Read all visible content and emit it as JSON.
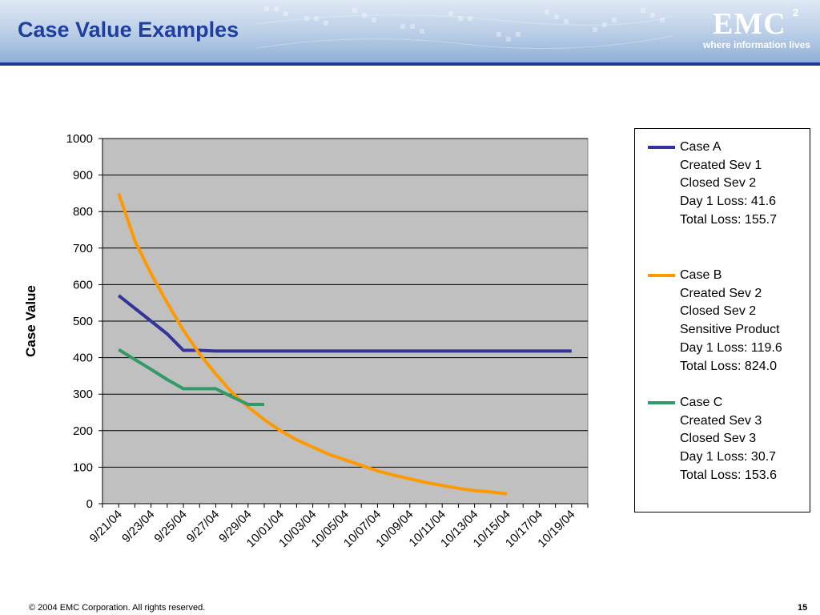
{
  "header": {
    "title": "Case Value Examples",
    "logo_text": "EMC",
    "logo_superscript": "2",
    "logo_tagline": "where information lives",
    "banner_color": "#9fbbdd",
    "title_color": "#1f3fa0"
  },
  "chart_data": {
    "type": "line",
    "title": "",
    "xlabel": "",
    "ylabel": "Case Value",
    "ylim": [
      0,
      1000
    ],
    "yticks": [
      0,
      100,
      200,
      300,
      400,
      500,
      600,
      700,
      800,
      900,
      1000
    ],
    "xtick_labels": [
      "9/21/04",
      "9/23/04",
      "9/25/04",
      "9/27/04",
      "9/29/04",
      "10/01/04",
      "10/03/04",
      "10/05/04",
      "10/07/04",
      "10/09/04",
      "10/11/04",
      "10/13/04",
      "10/15/04",
      "10/17/04",
      "10/19/04"
    ],
    "x_range": [
      "9/20/04",
      "10/20/04"
    ],
    "grid": "horizontal",
    "plot_background": "#c0c0c0",
    "legend_position": "right",
    "series": [
      {
        "name": "Case A",
        "color": "#333399",
        "legend_lines": [
          "Case A",
          "Created Sev 1",
          "Closed Sev 2",
          "Day 1 Loss: 41.6",
          "Total Loss: 155.7"
        ],
        "points": [
          [
            "9/21/04",
            570
          ],
          [
            "9/22/04",
            535
          ],
          [
            "9/23/04",
            500
          ],
          [
            "9/24/04",
            465
          ],
          [
            "9/25/04",
            420
          ],
          [
            "9/26/04",
            420
          ],
          [
            "9/27/04",
            418
          ],
          [
            "10/19/04",
            418
          ]
        ]
      },
      {
        "name": "Case B",
        "color": "#ff9900",
        "legend_lines": [
          "Case B",
          "Created Sev 2",
          "Closed Sev 2",
          "Sensitive Product",
          "Day 1 Loss: 119.6",
          "Total Loss: 824.0"
        ],
        "points": [
          [
            "9/21/04",
            850
          ],
          [
            "9/22/04",
            720
          ],
          [
            "9/23/04",
            630
          ],
          [
            "9/24/04",
            550
          ],
          [
            "9/25/04",
            475
          ],
          [
            "9/26/04",
            410
          ],
          [
            "9/27/04",
            355
          ],
          [
            "9/28/04",
            305
          ],
          [
            "9/29/04",
            265
          ],
          [
            "9/30/04",
            230
          ],
          [
            "10/01/04",
            200
          ],
          [
            "10/02/04",
            175
          ],
          [
            "10/03/04",
            155
          ],
          [
            "10/04/04",
            135
          ],
          [
            "10/05/04",
            120
          ],
          [
            "10/06/04",
            105
          ],
          [
            "10/07/04",
            90
          ],
          [
            "10/08/04",
            78
          ],
          [
            "10/09/04",
            68
          ],
          [
            "10/10/04",
            58
          ],
          [
            "10/11/04",
            50
          ],
          [
            "10/12/04",
            42
          ],
          [
            "10/13/04",
            36
          ],
          [
            "10/14/04",
            32
          ],
          [
            "10/15/04",
            27
          ]
        ]
      },
      {
        "name": "Case C",
        "color": "#339966",
        "legend_lines": [
          "Case C",
          "Created Sev 3",
          "Closed Sev 3",
          "Day 1 Loss: 30.7",
          "Total Loss: 153.6"
        ],
        "points": [
          [
            "9/21/04",
            422
          ],
          [
            "9/22/04",
            395
          ],
          [
            "9/23/04",
            368
          ],
          [
            "9/24/04",
            340
          ],
          [
            "9/25/04",
            315
          ],
          [
            "9/26/04",
            315
          ],
          [
            "9/27/04",
            315
          ],
          [
            "9/28/04",
            293
          ],
          [
            "9/29/04",
            272
          ],
          [
            "9/30/04",
            272
          ]
        ]
      }
    ]
  },
  "footer": {
    "copyright": "© 2004 EMC Corporation. All rights reserved.",
    "page_number": "15"
  }
}
